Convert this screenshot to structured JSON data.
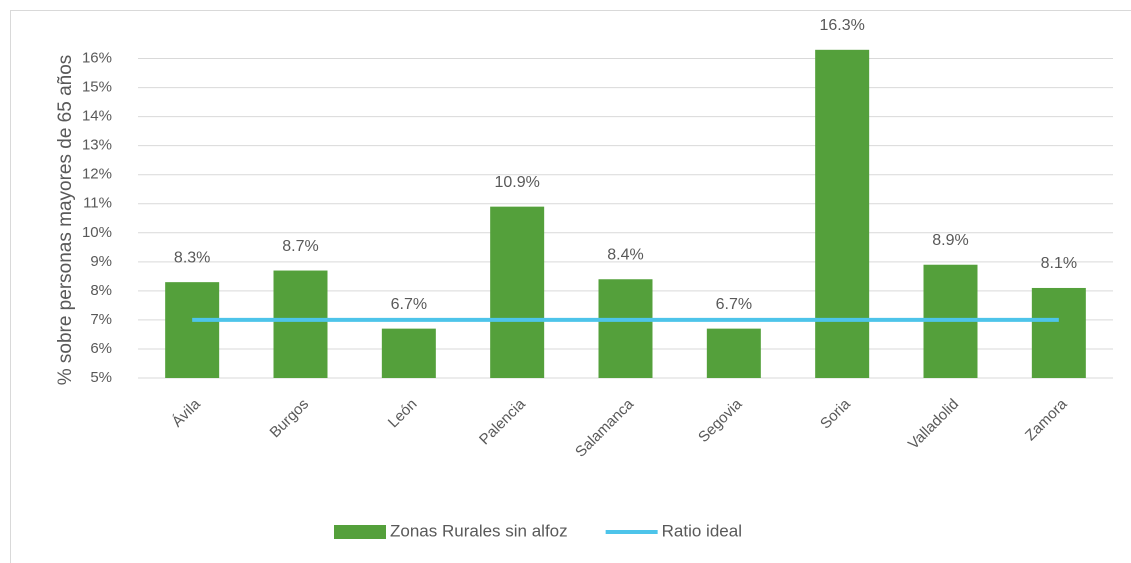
{
  "chart_data": {
    "type": "bar",
    "ylabel": "% sobre personas mayores de 65 años",
    "categories": [
      "Ávila",
      "Burgos",
      "León",
      "Palencia",
      "Salamanca",
      "Segovia",
      "Soria",
      "Valladolid",
      "Zamora"
    ],
    "series": [
      {
        "name": "Zonas Rurales sin alfoz",
        "type": "bar",
        "color": "#54a03b",
        "values": [
          8.3,
          8.7,
          6.7,
          10.9,
          8.4,
          6.7,
          16.3,
          8.9,
          8.1
        ],
        "value_labels": [
          "8.3%",
          "8.7%",
          "6.7%",
          "10.9%",
          "8.4%",
          "6.7%",
          "16.3%",
          "8.9%",
          "8.1%"
        ]
      },
      {
        "name": "Ratio ideal",
        "type": "line",
        "color": "#4dc4ea",
        "values": [
          7,
          7,
          7,
          7,
          7,
          7,
          7,
          7,
          7
        ]
      }
    ],
    "ylim": [
      5,
      16.5
    ],
    "yticks": [
      {
        "value": 5,
        "label": "5%"
      },
      {
        "value": 6,
        "label": "6%"
      },
      {
        "value": 7,
        "label": "7%"
      },
      {
        "value": 8,
        "label": "8%"
      },
      {
        "value": 9,
        "label": "9%"
      },
      {
        "value": 10,
        "label": "10%"
      },
      {
        "value": 11,
        "label": "11%"
      },
      {
        "value": 12,
        "label": "12%"
      },
      {
        "value": 13,
        "label": "13%"
      },
      {
        "value": 14,
        "label": "14%"
      },
      {
        "value": 15,
        "label": "15%"
      },
      {
        "value": 16,
        "label": "16%"
      }
    ],
    "grid": true,
    "legend": "bottom"
  }
}
